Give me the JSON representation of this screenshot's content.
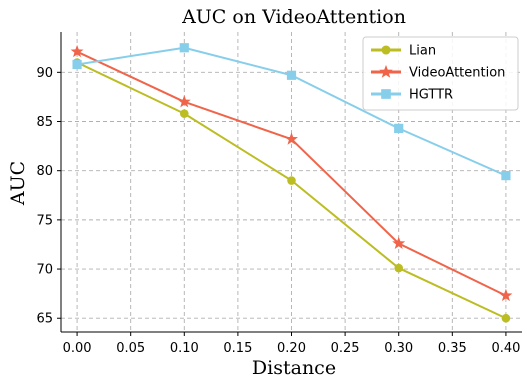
{
  "chart_data": {
    "type": "line",
    "title": "AUC on VideoAttention",
    "xlabel": "Distance",
    "ylabel": "AUC",
    "x": [
      0.0,
      0.1,
      0.2,
      0.3,
      0.4
    ],
    "xticks": [
      "0.00",
      "0.05",
      "0.10",
      "0.15",
      "0.20",
      "0.25",
      "0.30",
      "0.35",
      "0.40"
    ],
    "yticks": [
      "65",
      "70",
      "75",
      "80",
      "85",
      "90"
    ],
    "xlim": [
      -0.015,
      0.415
    ],
    "ylim": [
      63.6,
      94.1
    ],
    "grid": true,
    "legend_position": "top-right",
    "series": [
      {
        "name": "Lian",
        "color": "#bcbd22",
        "marker": "circle",
        "values": [
          91.0,
          85.8,
          79.0,
          70.1,
          65.0
        ]
      },
      {
        "name": "VideoAttention",
        "color": "#f0644a",
        "marker": "star",
        "values": [
          92.1,
          87.0,
          83.2,
          72.6,
          67.3
        ]
      },
      {
        "name": "HGTTR",
        "color": "#87ceeb",
        "marker": "square",
        "values": [
          90.8,
          92.5,
          89.7,
          84.3,
          79.5
        ]
      }
    ]
  }
}
